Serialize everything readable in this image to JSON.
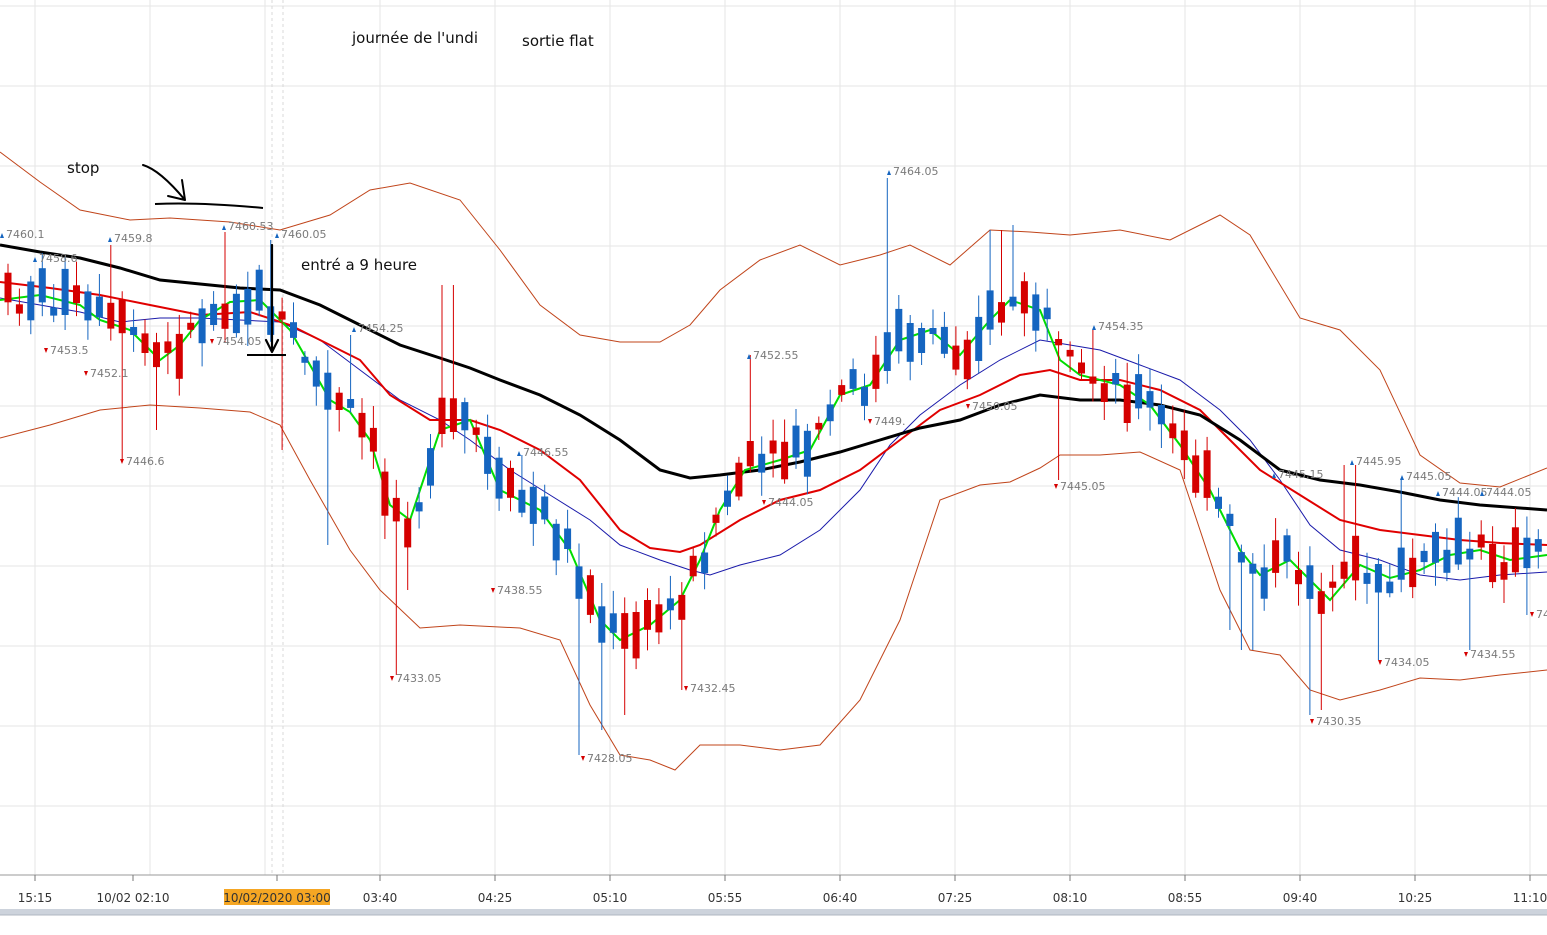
{
  "annotations": {
    "journee": "journée de l'undi",
    "sortie": "sortie flat",
    "stop": "stop",
    "entre": "entré a 9 heure"
  },
  "x_axis": {
    "labels": [
      "15:15",
      "10/02 02:10",
      "10/02/2020 03:00",
      "03:40",
      "04:25",
      "05:10",
      "05:55",
      "06:40",
      "07:25",
      "08:10",
      "08:55",
      "09:40",
      "10:25",
      "11:10"
    ],
    "highlight_label": "10/02/2020 03:00",
    "highlight_color": "#f5a623"
  },
  "colors": {
    "bull_candle": "#1565c0",
    "bear_candle": "#d50000",
    "ma_fast": "#00dd00",
    "ma_mid": "#e00000",
    "ma_slow": "#000000",
    "ma_blue": "#1a1aaa",
    "bollinger": "#c0441a",
    "grid": "#e6e6e6"
  },
  "chart_data": {
    "type": "candlestick",
    "title": "",
    "y_range": [
      7420,
      7475
    ],
    "price_labels": [
      {
        "text": "7460.1",
        "dir": "up"
      },
      {
        "text": "7458.6",
        "dir": "up"
      },
      {
        "text": "7459.8",
        "dir": "up"
      },
      {
        "text": "7460.53",
        "dir": "up"
      },
      {
        "text": "7460.05",
        "dir": "up"
      },
      {
        "text": "7453.5",
        "dir": "down"
      },
      {
        "text": "7452.1",
        "dir": "down"
      },
      {
        "text": "7454.05",
        "dir": "down"
      },
      {
        "text": "7446.6",
        "dir": "down"
      },
      {
        "text": "7454.25",
        "dir": "up"
      },
      {
        "text": "7433.05",
        "dir": "down"
      },
      {
        "text": "7446.55",
        "dir": "up"
      },
      {
        "text": "7438.55",
        "dir": "down"
      },
      {
        "text": "7428.05",
        "dir": "down"
      },
      {
        "text": "7432.45",
        "dir": "down"
      },
      {
        "text": "7452.55",
        "dir": "up"
      },
      {
        "text": "7444.05",
        "dir": "down"
      },
      {
        "text": "7464.05",
        "dir": "up"
      },
      {
        "text": "7449.",
        "dir": "down"
      },
      {
        "text": "7450.05",
        "dir": "down"
      },
      {
        "text": "7454.35",
        "dir": "up"
      },
      {
        "text": "7445.05",
        "dir": "down"
      },
      {
        "text": "7445.15",
        "dir": "up"
      },
      {
        "text": "7445.95",
        "dir": "up"
      },
      {
        "text": "7445.05",
        "dir": "up"
      },
      {
        "text": "7444.05",
        "dir": "up"
      },
      {
        "text": "7444.05",
        "dir": "up"
      },
      {
        "text": "7430.35",
        "dir": "down"
      },
      {
        "text": "7434.05",
        "dir": "down"
      },
      {
        "text": "7434.55",
        "dir": "down"
      },
      {
        "text": "74",
        "dir": "down"
      }
    ]
  }
}
